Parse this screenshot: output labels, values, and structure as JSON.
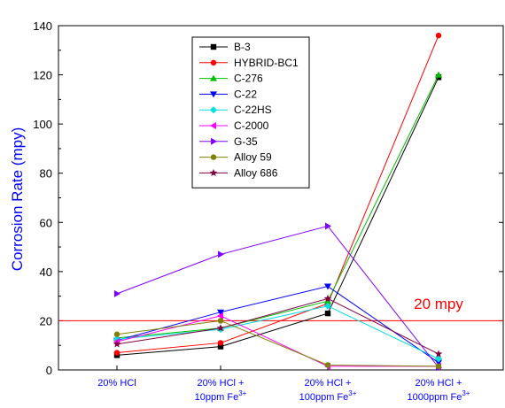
{
  "chart_data": {
    "type": "line",
    "title": "",
    "xlabel": "",
    "ylabel": "Corrosion Rate (mpy)",
    "ylim": [
      0,
      140
    ],
    "yticks": [
      "0",
      "20",
      "40",
      "60",
      "80",
      "100",
      "120",
      "140"
    ],
    "grid": false,
    "legend_position": "top-center",
    "categories": [
      {
        "main": "20% HCl",
        "line2": "",
        "sup": ""
      },
      {
        "main": "20% HCl +",
        "line2": "10ppm Fe",
        "sup": "3+"
      },
      {
        "main": "20% HCl +",
        "line2": "100ppm Fe",
        "sup": "3+"
      },
      {
        "main": "20% HCl +",
        "line2": "1000ppm Fe",
        "sup": "3+"
      }
    ],
    "reference_line": {
      "value": 20,
      "label": "20 mpy",
      "color": "#ff0000"
    },
    "series": [
      {
        "name": "B-3",
        "color": "#000000",
        "marker": "square",
        "values": [
          6,
          9.5,
          23,
          119
        ]
      },
      {
        "name": "HYBRID-BC1",
        "color": "#ff0000",
        "marker": "circle",
        "values": [
          7,
          11,
          27,
          136
        ]
      },
      {
        "name": "C-276",
        "color": "#00c000",
        "marker": "triangle-up",
        "values": [
          13,
          17,
          28,
          120
        ]
      },
      {
        "name": "C-22",
        "color": "#0000ff",
        "marker": "triangle-down",
        "values": [
          12,
          23.5,
          34,
          3
        ]
      },
      {
        "name": "C-22HS",
        "color": "#00e0e0",
        "marker": "diamond",
        "values": [
          12.5,
          16.5,
          26,
          4.5
        ]
      },
      {
        "name": "C-2000",
        "color": "#ff00ff",
        "marker": "triangle-left",
        "values": [
          11.5,
          22,
          1.5,
          1.5
        ]
      },
      {
        "name": "G-35",
        "color": "#8000ff",
        "marker": "triangle-right",
        "values": [
          31,
          47,
          58.5,
          1
        ]
      },
      {
        "name": "Alloy 59",
        "color": "#808000",
        "marker": "circle",
        "values": [
          14.5,
          20,
          2,
          1.5
        ]
      },
      {
        "name": "Alloy 686",
        "color": "#800040",
        "marker": "star",
        "values": [
          10.5,
          17,
          29,
          6.5
        ]
      }
    ]
  }
}
